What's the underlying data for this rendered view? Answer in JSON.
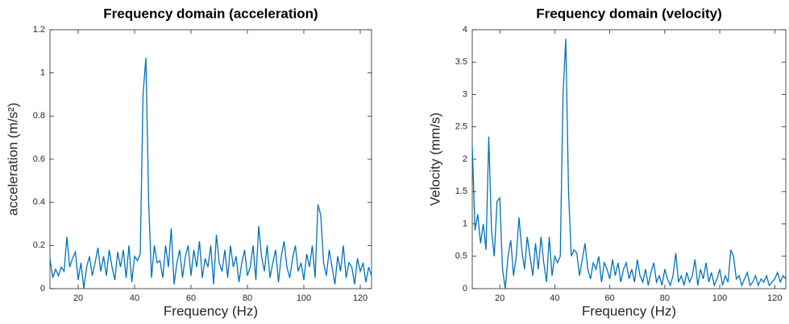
{
  "chart_data": [
    {
      "type": "line",
      "title": "Frequency domain (acceleration)",
      "xlabel": "Frequency (Hz)",
      "ylabel": "acceleration (m/s²)",
      "color": "#0072bd",
      "x": [
        10,
        11,
        12,
        13,
        14,
        15,
        16,
        17,
        18,
        19,
        20,
        21,
        22,
        23,
        24,
        25,
        26,
        27,
        28,
        29,
        30,
        31,
        32,
        33,
        34,
        35,
        36,
        37,
        38,
        39,
        40,
        41,
        42,
        43,
        44,
        45,
        46,
        47,
        48,
        49,
        50,
        51,
        52,
        53,
        54,
        55,
        56,
        57,
        58,
        59,
        60,
        61,
        62,
        63,
        64,
        65,
        66,
        67,
        68,
        69,
        70,
        71,
        72,
        73,
        74,
        75,
        76,
        77,
        78,
        79,
        80,
        81,
        82,
        83,
        84,
        85,
        86,
        87,
        88,
        89,
        90,
        91,
        92,
        93,
        94,
        95,
        96,
        97,
        98,
        99,
        100,
        101,
        102,
        103,
        104,
        105,
        106,
        107,
        108,
        109,
        110,
        111,
        112,
        113,
        114,
        115,
        116,
        117,
        118,
        119,
        120,
        121,
        122,
        123,
        124
      ],
      "values": [
        0.14,
        0.05,
        0.09,
        0.06,
        0.1,
        0.08,
        0.24,
        0.1,
        0.14,
        0.17,
        0.04,
        0.12,
        0.0,
        0.1,
        0.15,
        0.06,
        0.12,
        0.19,
        0.08,
        0.15,
        0.06,
        0.18,
        0.1,
        0.04,
        0.17,
        0.1,
        0.18,
        0.05,
        0.2,
        0.03,
        0.15,
        0.13,
        0.16,
        0.9,
        1.07,
        0.4,
        0.05,
        0.2,
        0.12,
        0.13,
        0.05,
        0.2,
        0.1,
        0.28,
        0.02,
        0.12,
        0.18,
        0.05,
        0.15,
        0.2,
        0.06,
        0.18,
        0.1,
        0.22,
        0.05,
        0.14,
        0.1,
        0.2,
        0.02,
        0.25,
        0.12,
        0.08,
        0.18,
        0.05,
        0.2,
        0.1,
        0.15,
        0.03,
        0.12,
        0.18,
        0.06,
        0.1,
        0.2,
        0.04,
        0.29,
        0.15,
        0.08,
        0.2,
        0.05,
        0.12,
        0.18,
        0.03,
        0.15,
        0.22,
        0.1,
        0.05,
        0.14,
        0.2,
        0.08,
        0.12,
        0.04,
        0.16,
        0.1,
        0.2,
        0.05,
        0.39,
        0.34,
        0.12,
        0.06,
        0.18,
        0.1,
        0.02,
        0.15,
        0.08,
        0.2,
        0.05,
        0.12,
        0.1,
        0.02,
        0.14,
        0.08,
        0.12,
        0.03,
        0.1,
        0.06
      ],
      "xlim": [
        10,
        124
      ],
      "xticks": [
        20,
        40,
        60,
        80,
        100,
        120
      ],
      "ylim": [
        0,
        1.2
      ],
      "yticks": [
        0,
        0.2,
        0.4,
        0.6,
        0.8,
        1,
        1.2
      ]
    },
    {
      "type": "line",
      "title": "Frequency domain (velocity)",
      "xlabel": "Frequency (Hz)",
      "ylabel": "Velocity (mm/s)",
      "color": "#0072bd",
      "x": [
        10,
        11,
        12,
        13,
        14,
        15,
        16,
        17,
        18,
        19,
        20,
        21,
        22,
        23,
        24,
        25,
        26,
        27,
        28,
        29,
        30,
        31,
        32,
        33,
        34,
        35,
        36,
        37,
        38,
        39,
        40,
        41,
        42,
        43,
        44,
        45,
        46,
        47,
        48,
        49,
        50,
        51,
        52,
        53,
        54,
        55,
        56,
        57,
        58,
        59,
        60,
        61,
        62,
        63,
        64,
        65,
        66,
        67,
        68,
        69,
        70,
        71,
        72,
        73,
        74,
        75,
        76,
        77,
        78,
        79,
        80,
        81,
        82,
        83,
        84,
        85,
        86,
        87,
        88,
        89,
        90,
        91,
        92,
        93,
        94,
        95,
        96,
        97,
        98,
        99,
        100,
        101,
        102,
        103,
        104,
        105,
        106,
        107,
        108,
        109,
        110,
        111,
        112,
        113,
        114,
        115,
        116,
        117,
        118,
        119,
        120,
        121,
        122,
        123,
        124
      ],
      "values": [
        2.2,
        0.9,
        1.15,
        0.7,
        1.0,
        0.6,
        2.35,
        0.9,
        0.5,
        1.35,
        1.4,
        0.3,
        0.0,
        0.5,
        0.75,
        0.2,
        0.5,
        1.1,
        0.6,
        0.3,
        0.8,
        0.5,
        0.2,
        0.7,
        0.3,
        0.8,
        0.4,
        0.1,
        0.8,
        0.2,
        0.5,
        0.4,
        0.5,
        3.0,
        3.86,
        1.5,
        0.5,
        0.6,
        0.55,
        0.2,
        0.45,
        0.7,
        0.3,
        0.15,
        0.4,
        0.3,
        0.5,
        0.1,
        0.4,
        0.3,
        0.15,
        0.45,
        0.2,
        0.4,
        0.1,
        0.3,
        0.4,
        0.15,
        0.3,
        0.1,
        0.45,
        0.2,
        0.1,
        0.3,
        0.05,
        0.25,
        0.4,
        0.1,
        0.2,
        0.05,
        0.3,
        0.15,
        0.05,
        0.2,
        0.55,
        0.1,
        0.2,
        0.05,
        0.25,
        0.1,
        0.2,
        0.45,
        0.05,
        0.3,
        0.15,
        0.4,
        0.1,
        0.25,
        0.05,
        0.15,
        0.3,
        0.05,
        0.2,
        0.1,
        0.6,
        0.5,
        0.15,
        0.2,
        0.05,
        0.15,
        0.25,
        0.05,
        0.1,
        0.2,
        0.05,
        0.15,
        0.1,
        0.2,
        0.05,
        0.1,
        0.15,
        0.25,
        0.1,
        0.2,
        0.15
      ],
      "xlim": [
        10,
        124
      ],
      "xticks": [
        20,
        40,
        60,
        80,
        100,
        120
      ],
      "ylim": [
        0,
        4
      ],
      "yticks": [
        0,
        0.5,
        1,
        1.5,
        2,
        2.5,
        3,
        3.5,
        4
      ]
    }
  ]
}
